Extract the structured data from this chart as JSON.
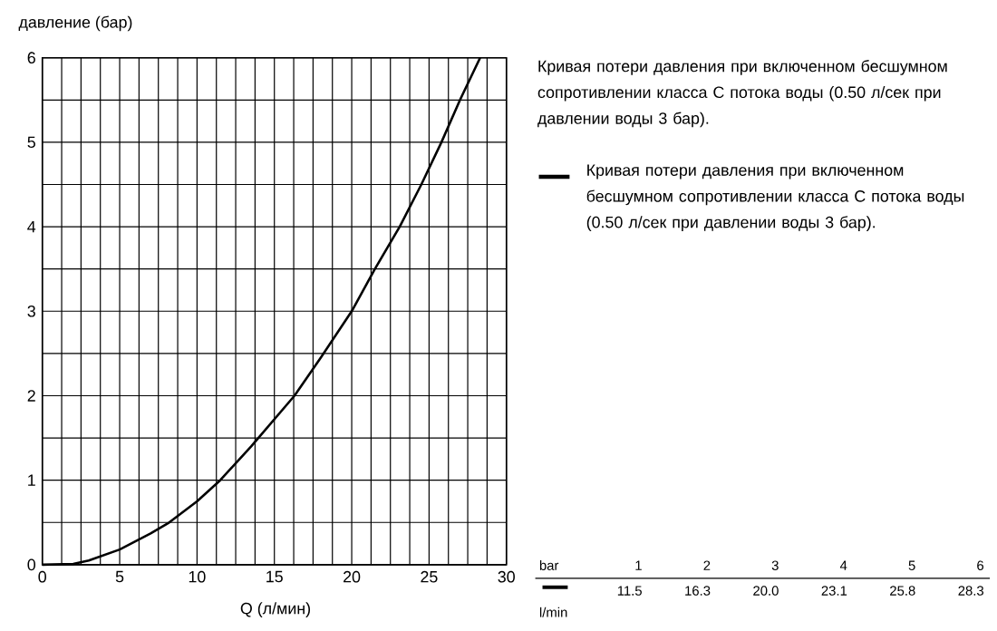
{
  "chart_data": {
    "type": "line",
    "title": "Кривая потери давления при включенном бесшумном сопротивлении класса С потока воды (0.50 л/сек при давлении воды 3 бар).",
    "xlabel": "Q (л/мин)",
    "ylabel": "давление (бар)",
    "xlim": [
      0,
      30
    ],
    "ylim": [
      0,
      6
    ],
    "xticks": [
      0,
      {
        "value": 1.25,
        "label": null
      },
      {
        "value": 2.5,
        "label": null
      },
      {
        "value": 3.75,
        "label": null
      },
      5,
      {
        "value": 6.25,
        "label": null
      },
      {
        "value": 7.5,
        "label": null
      },
      {
        "value": 8.75,
        "label": null
      },
      10,
      {
        "value": 11.25,
        "label": null
      },
      {
        "value": 12.5,
        "label": null
      },
      {
        "value": 13.75,
        "label": null
      },
      15,
      {
        "value": 16.25,
        "label": null
      },
      {
        "value": 17.5,
        "label": null
      },
      {
        "value": 18.75,
        "label": null
      },
      20,
      {
        "value": 21.25,
        "label": null
      },
      {
        "value": 22.5,
        "label": null
      },
      {
        "value": 23.75,
        "label": null
      },
      25,
      {
        "value": 26.25,
        "label": null
      },
      {
        "value": 27.5,
        "label": null
      },
      {
        "value": 28.75,
        "label": null
      },
      30
    ],
    "yticks": [
      0,
      {
        "value": 0.5,
        "label": null
      },
      1,
      {
        "value": 1.5,
        "label": null
      },
      2,
      {
        "value": 2.5,
        "label": null
      },
      3,
      {
        "value": 3.5,
        "label": null
      },
      4,
      {
        "value": 4.5,
        "label": null
      },
      5,
      {
        "value": 5.5,
        "label": null
      },
      6
    ],
    "grid": true,
    "legend": "right",
    "series": [
      {
        "name": "Кривая потери давления при включенном бесшумном сопротивлении класса С потока воды (0.50 л/сек при давлении воды 3 бар).",
        "color": "#000000",
        "x": [
          0,
          2,
          3,
          5,
          7,
          8.2,
          10,
          11.5,
          13.5,
          16.3,
          18,
          20.0,
          21.5,
          23.1,
          24.5,
          25.8,
          27,
          28.3
        ],
        "values": [
          0,
          0.01,
          0.05,
          0.18,
          0.37,
          0.5,
          0.75,
          1,
          1.4,
          2,
          2.45,
          3,
          3.5,
          4,
          4.5,
          5,
          5.5,
          6
        ]
      }
    ],
    "annotations": [
      "bar",
      "1",
      "2",
      "3",
      "4",
      "5",
      "6",
      "l/min",
      "11.5",
      "16.3",
      "20.0",
      "23.1",
      "25.8",
      "28.3"
    ]
  }
}
